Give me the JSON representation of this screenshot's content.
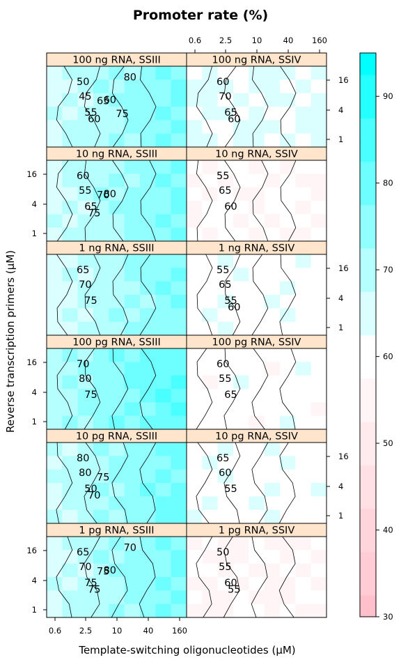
{
  "chart_data": {
    "type": "heatmap",
    "title": "Promoter rate (%)",
    "xlabel": "Template-switching oligonucleotides (μM)",
    "ylabel": "Reverse transcription primers (μM)",
    "x_ticks": [
      "0.6",
      "2.5",
      "10",
      "40",
      "160"
    ],
    "y_ticks": [
      "1",
      "4",
      "16"
    ],
    "x_scale": "log",
    "y_scale": "log",
    "colorbar": {
      "range": [
        30,
        95
      ],
      "ticks": [
        "30",
        "40",
        "50",
        "60",
        "70",
        "80",
        "90"
      ],
      "low_color": "#FFC0CB",
      "mid_color": "#FFFFFF",
      "high_color": "#00FFFF",
      "midpoint": 60
    },
    "panels": [
      {
        "name": "100 ng RNA, SSIII",
        "row": 0,
        "col": 0,
        "base": 72,
        "labels": [
          "50",
          "45",
          "55",
          "60",
          "65",
          "60",
          "80",
          "75"
        ]
      },
      {
        "name": "100 ng RNA, SSIV",
        "row": 0,
        "col": 1,
        "base": 63,
        "labels": [
          "60",
          "70",
          "65",
          "60"
        ]
      },
      {
        "name": "10 ng RNA, SSIII",
        "row": 1,
        "col": 0,
        "base": 72,
        "labels": [
          "60",
          "55",
          "65",
          "75",
          "70",
          "80"
        ]
      },
      {
        "name": "10 ng RNA, SSIV",
        "row": 1,
        "col": 1,
        "base": 58,
        "labels": [
          "55",
          "65",
          "60"
        ]
      },
      {
        "name": "1 ng RNA, SSIII",
        "row": 2,
        "col": 0,
        "base": 71,
        "labels": [
          "65",
          "70",
          "75"
        ]
      },
      {
        "name": "1 ng RNA, SSIV",
        "row": 2,
        "col": 1,
        "base": 61,
        "labels": [
          "55",
          "65",
          "55",
          "60"
        ]
      },
      {
        "name": "100 pg RNA, SSIII",
        "row": 3,
        "col": 0,
        "base": 76,
        "labels": [
          "70",
          "80",
          "75"
        ]
      },
      {
        "name": "100 pg RNA, SSIV",
        "row": 3,
        "col": 1,
        "base": 60,
        "labels": [
          "60",
          "55",
          "65"
        ]
      },
      {
        "name": "10 pg RNA, SSIII",
        "row": 4,
        "col": 0,
        "base": 73,
        "labels": [
          "80",
          "80",
          "50",
          "70",
          "75"
        ]
      },
      {
        "name": "10 pg RNA, SSIV",
        "row": 4,
        "col": 1,
        "base": 61,
        "labels": [
          "65",
          "60",
          "55"
        ]
      },
      {
        "name": "1 pg RNA, SSIII",
        "row": 5,
        "col": 0,
        "base": 72,
        "labels": [
          "65",
          "70",
          "75",
          "75",
          "75",
          "80",
          "70"
        ]
      },
      {
        "name": "1 pg RNA, SSIV",
        "row": 5,
        "col": 1,
        "base": 57,
        "labels": [
          "50",
          "55",
          "60",
          "55"
        ]
      }
    ]
  }
}
